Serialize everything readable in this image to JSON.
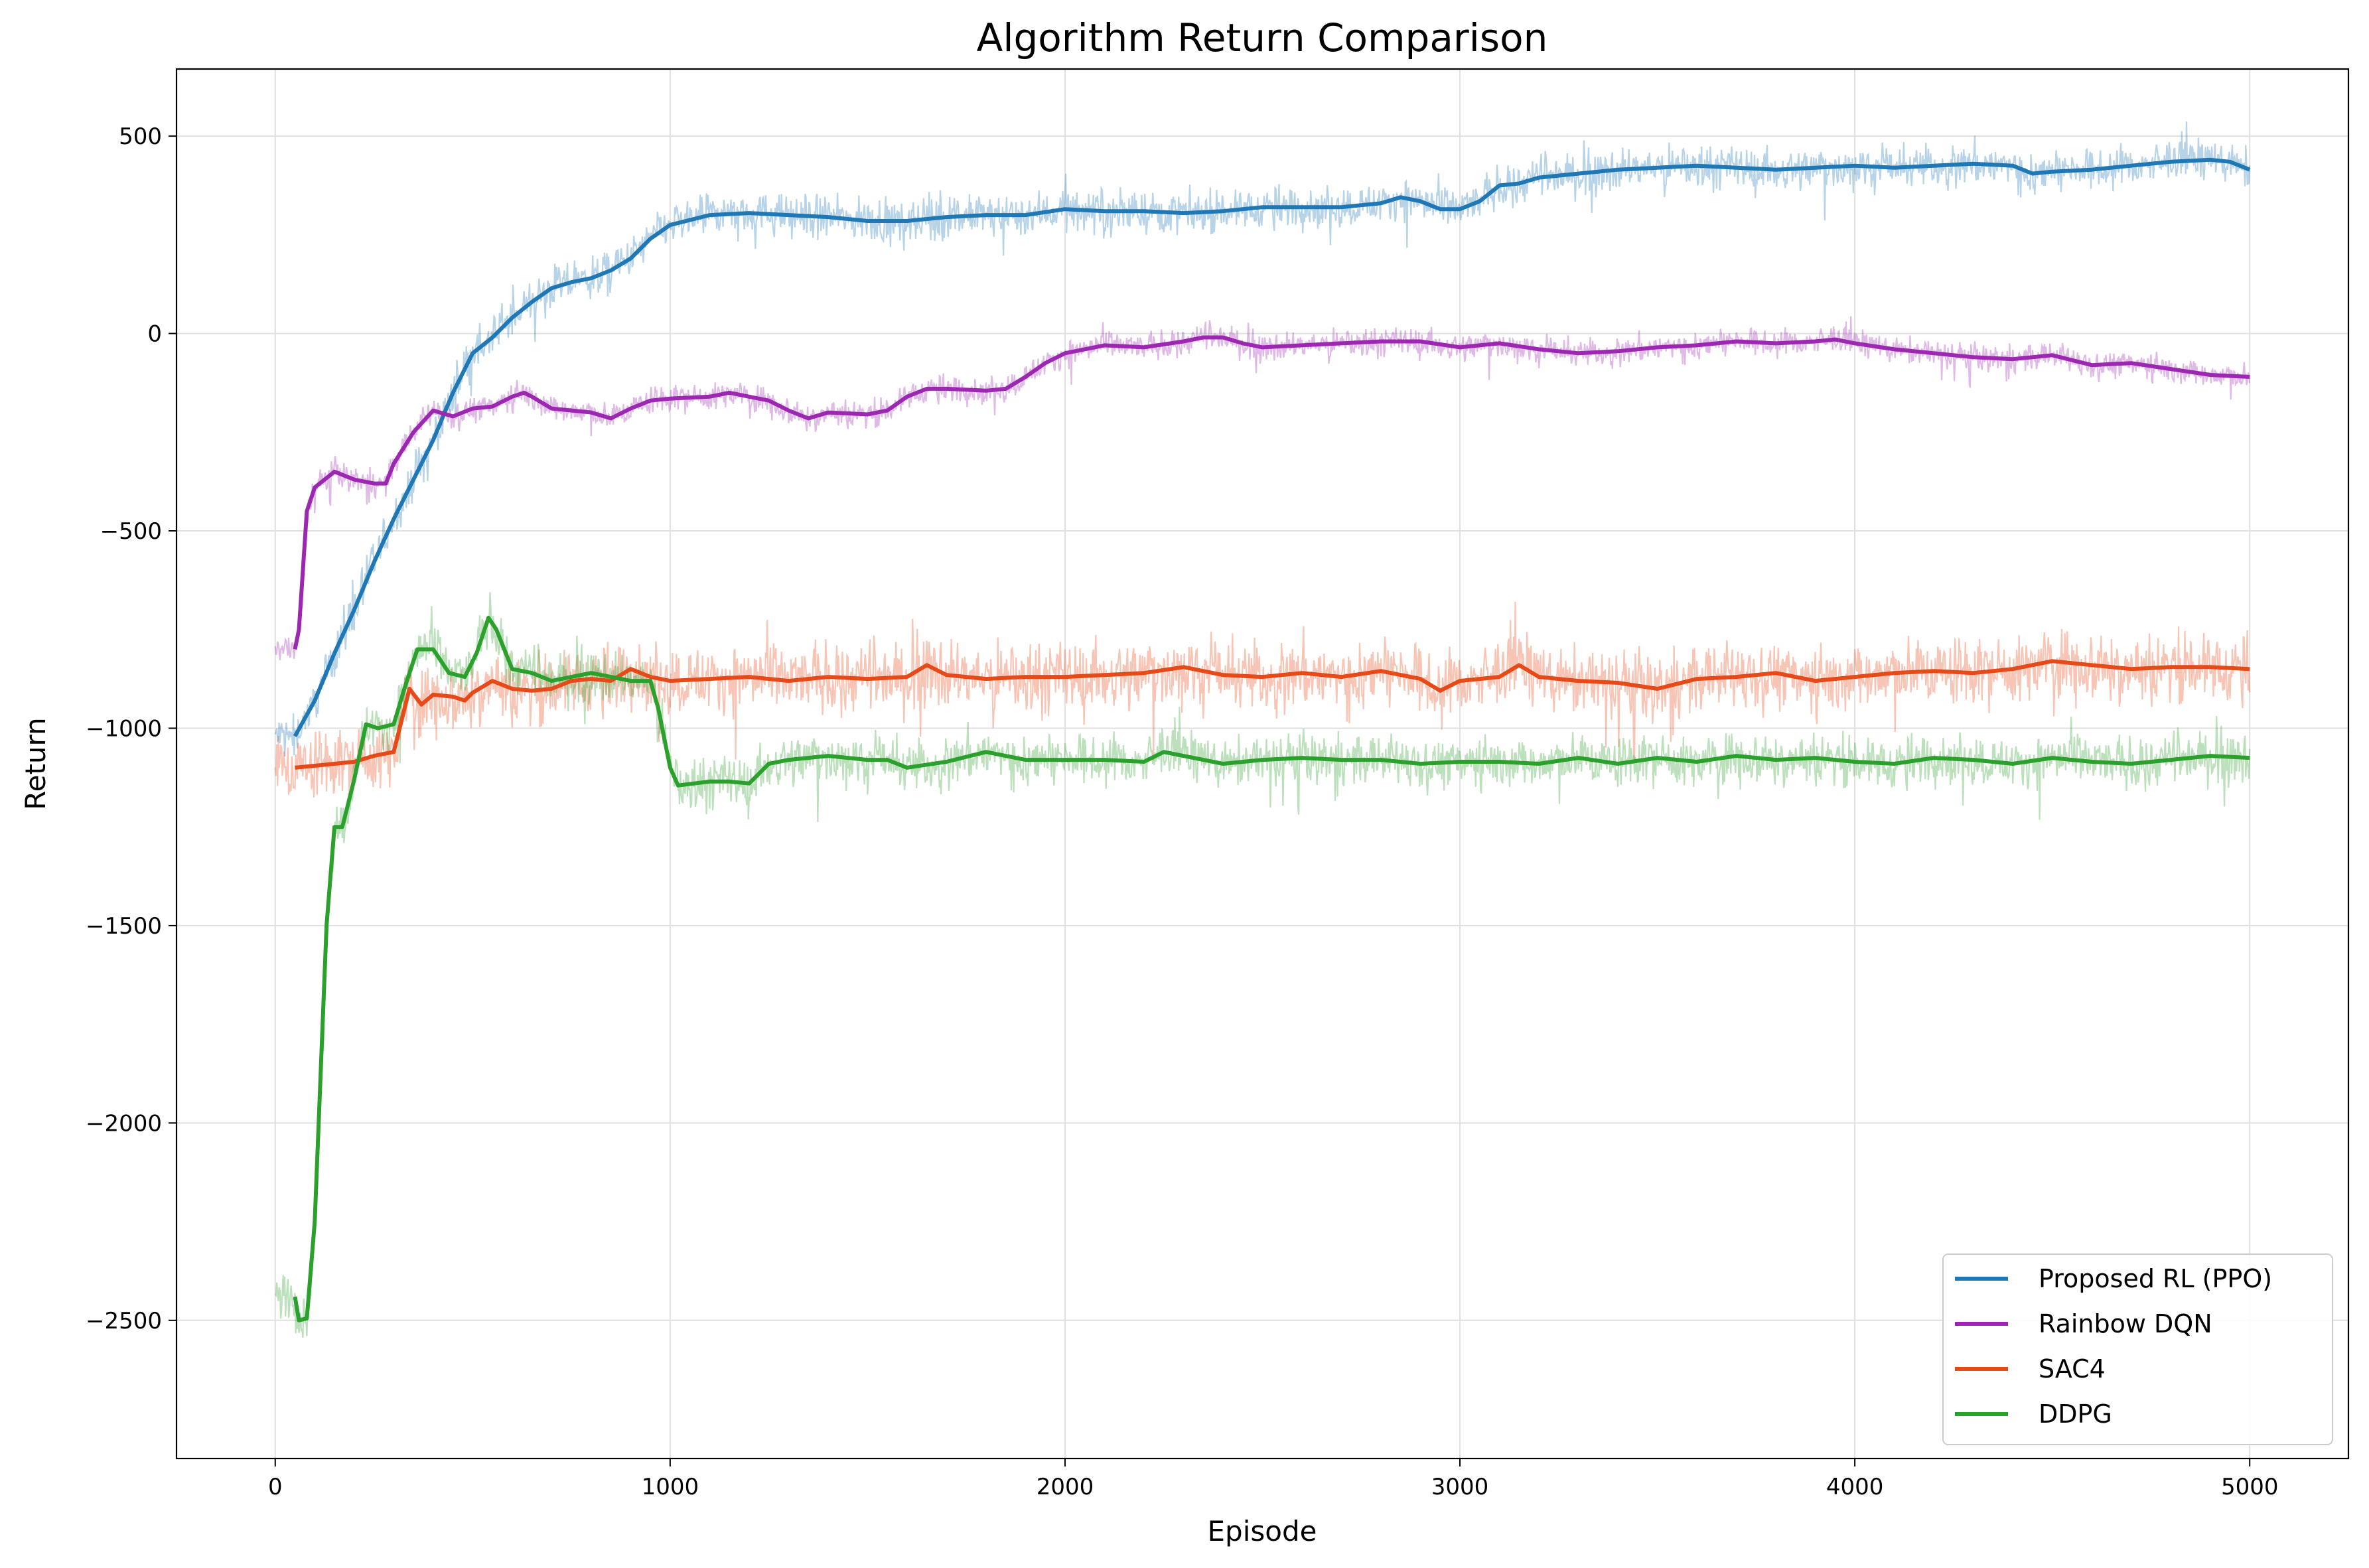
{
  "chart_data": {
    "type": "line",
    "title": "Algorithm Return Comparison",
    "xlabel": "Episode",
    "ylabel": "Return",
    "xlim": [
      -250,
      5250
    ],
    "ylim": [
      -2850,
      670
    ],
    "xticks": [
      0,
      1000,
      2000,
      3000,
      4000,
      5000
    ],
    "yticks": [
      -2500,
      -2000,
      -1500,
      -1000,
      -500,
      0,
      500
    ],
    "grid": true,
    "legend_position": "lower-right",
    "raw_noise_shown": true,
    "series": [
      {
        "name": "Proposed RL (PPO)",
        "color": "#1f77b4",
        "raw_noise": 45,
        "raw_start": 0,
        "smoothed": [
          [
            50,
            -1020
          ],
          [
            100,
            -930
          ],
          [
            150,
            -810
          ],
          [
            200,
            -700
          ],
          [
            250,
            -580
          ],
          [
            300,
            -470
          ],
          [
            350,
            -370
          ],
          [
            400,
            -270
          ],
          [
            450,
            -150
          ],
          [
            500,
            -50
          ],
          [
            550,
            -10
          ],
          [
            600,
            40
          ],
          [
            650,
            80
          ],
          [
            700,
            115
          ],
          [
            750,
            130
          ],
          [
            800,
            140
          ],
          [
            850,
            160
          ],
          [
            900,
            190
          ],
          [
            950,
            240
          ],
          [
            1000,
            275
          ],
          [
            1100,
            300
          ],
          [
            1200,
            305
          ],
          [
            1300,
            300
          ],
          [
            1400,
            295
          ],
          [
            1500,
            285
          ],
          [
            1600,
            285
          ],
          [
            1700,
            295
          ],
          [
            1800,
            300
          ],
          [
            1900,
            300
          ],
          [
            2000,
            315
          ],
          [
            2100,
            310
          ],
          [
            2200,
            310
          ],
          [
            2300,
            305
          ],
          [
            2400,
            310
          ],
          [
            2500,
            320
          ],
          [
            2600,
            320
          ],
          [
            2700,
            320
          ],
          [
            2800,
            330
          ],
          [
            2850,
            345
          ],
          [
            2900,
            335
          ],
          [
            2950,
            315
          ],
          [
            3000,
            315
          ],
          [
            3050,
            335
          ],
          [
            3100,
            375
          ],
          [
            3150,
            380
          ],
          [
            3200,
            395
          ],
          [
            3300,
            405
          ],
          [
            3400,
            415
          ],
          [
            3500,
            420
          ],
          [
            3600,
            425
          ],
          [
            3700,
            420
          ],
          [
            3800,
            415
          ],
          [
            3900,
            420
          ],
          [
            4000,
            425
          ],
          [
            4100,
            420
          ],
          [
            4200,
            425
          ],
          [
            4300,
            430
          ],
          [
            4400,
            425
          ],
          [
            4450,
            405
          ],
          [
            4500,
            410
          ],
          [
            4600,
            415
          ],
          [
            4700,
            425
          ],
          [
            4800,
            435
          ],
          [
            4900,
            440
          ],
          [
            4950,
            435
          ],
          [
            5000,
            415
          ]
        ]
      },
      {
        "name": "Rainbow DQN",
        "color": "#9c27b0",
        "raw_noise": 30,
        "raw_start": 0,
        "smoothed": [
          [
            50,
            -800
          ],
          [
            60,
            -750
          ],
          [
            80,
            -450
          ],
          [
            100,
            -390
          ],
          [
            150,
            -350
          ],
          [
            200,
            -370
          ],
          [
            250,
            -380
          ],
          [
            280,
            -380
          ],
          [
            300,
            -330
          ],
          [
            350,
            -250
          ],
          [
            400,
            -195
          ],
          [
            450,
            -210
          ],
          [
            500,
            -190
          ],
          [
            550,
            -185
          ],
          [
            600,
            -160
          ],
          [
            630,
            -150
          ],
          [
            650,
            -160
          ],
          [
            700,
            -190
          ],
          [
            750,
            -195
          ],
          [
            800,
            -200
          ],
          [
            850,
            -215
          ],
          [
            900,
            -190
          ],
          [
            950,
            -170
          ],
          [
            1000,
            -165
          ],
          [
            1100,
            -160
          ],
          [
            1150,
            -150
          ],
          [
            1200,
            -160
          ],
          [
            1250,
            -170
          ],
          [
            1300,
            -195
          ],
          [
            1350,
            -215
          ],
          [
            1400,
            -200
          ],
          [
            1500,
            -205
          ],
          [
            1550,
            -195
          ],
          [
            1600,
            -160
          ],
          [
            1650,
            -140
          ],
          [
            1700,
            -140
          ],
          [
            1800,
            -145
          ],
          [
            1850,
            -140
          ],
          [
            1900,
            -110
          ],
          [
            1950,
            -75
          ],
          [
            2000,
            -50
          ],
          [
            2100,
            -30
          ],
          [
            2200,
            -35
          ],
          [
            2300,
            -20
          ],
          [
            2350,
            -10
          ],
          [
            2400,
            -10
          ],
          [
            2450,
            -25
          ],
          [
            2500,
            -35
          ],
          [
            2600,
            -30
          ],
          [
            2700,
            -25
          ],
          [
            2800,
            -20
          ],
          [
            2900,
            -20
          ],
          [
            3000,
            -35
          ],
          [
            3100,
            -25
          ],
          [
            3200,
            -40
          ],
          [
            3300,
            -50
          ],
          [
            3400,
            -45
          ],
          [
            3500,
            -35
          ],
          [
            3600,
            -30
          ],
          [
            3700,
            -20
          ],
          [
            3800,
            -25
          ],
          [
            3900,
            -20
          ],
          [
            3950,
            -15
          ],
          [
            4000,
            -25
          ],
          [
            4100,
            -40
          ],
          [
            4200,
            -50
          ],
          [
            4300,
            -60
          ],
          [
            4400,
            -65
          ],
          [
            4500,
            -55
          ],
          [
            4600,
            -80
          ],
          [
            4700,
            -75
          ],
          [
            4800,
            -90
          ],
          [
            4900,
            -105
          ],
          [
            5000,
            -110
          ]
        ]
      },
      {
        "name": "SAC4",
        "color": "#e64a19",
        "raw_noise": 75,
        "raw_start": 0,
        "smoothed": [
          [
            50,
            -1100
          ],
          [
            100,
            -1095
          ],
          [
            150,
            -1090
          ],
          [
            200,
            -1085
          ],
          [
            250,
            -1070
          ],
          [
            300,
            -1060
          ],
          [
            340,
            -900
          ],
          [
            370,
            -940
          ],
          [
            400,
            -915
          ],
          [
            450,
            -920
          ],
          [
            480,
            -930
          ],
          [
            500,
            -910
          ],
          [
            550,
            -880
          ],
          [
            600,
            -900
          ],
          [
            650,
            -905
          ],
          [
            700,
            -900
          ],
          [
            750,
            -880
          ],
          [
            800,
            -875
          ],
          [
            850,
            -880
          ],
          [
            900,
            -850
          ],
          [
            950,
            -870
          ],
          [
            1000,
            -880
          ],
          [
            1100,
            -875
          ],
          [
            1200,
            -870
          ],
          [
            1300,
            -880
          ],
          [
            1400,
            -870
          ],
          [
            1500,
            -875
          ],
          [
            1600,
            -870
          ],
          [
            1650,
            -840
          ],
          [
            1700,
            -865
          ],
          [
            1800,
            -875
          ],
          [
            1900,
            -870
          ],
          [
            2000,
            -870
          ],
          [
            2100,
            -865
          ],
          [
            2200,
            -860
          ],
          [
            2300,
            -845
          ],
          [
            2400,
            -865
          ],
          [
            2500,
            -870
          ],
          [
            2600,
            -860
          ],
          [
            2700,
            -870
          ],
          [
            2800,
            -855
          ],
          [
            2900,
            -875
          ],
          [
            2950,
            -905
          ],
          [
            3000,
            -880
          ],
          [
            3100,
            -870
          ],
          [
            3150,
            -840
          ],
          [
            3200,
            -870
          ],
          [
            3300,
            -880
          ],
          [
            3400,
            -885
          ],
          [
            3500,
            -900
          ],
          [
            3600,
            -875
          ],
          [
            3700,
            -870
          ],
          [
            3800,
            -860
          ],
          [
            3900,
            -880
          ],
          [
            4000,
            -870
          ],
          [
            4100,
            -860
          ],
          [
            4200,
            -855
          ],
          [
            4300,
            -860
          ],
          [
            4400,
            -850
          ],
          [
            4500,
            -830
          ],
          [
            4600,
            -840
          ],
          [
            4700,
            -850
          ],
          [
            4800,
            -845
          ],
          [
            4900,
            -845
          ],
          [
            5000,
            -850
          ]
        ]
      },
      {
        "name": "DDPG",
        "color": "#2ca02c",
        "raw_noise": 55,
        "raw_start": 0,
        "smoothed": [
          [
            50,
            -2440
          ],
          [
            60,
            -2500
          ],
          [
            80,
            -2495
          ],
          [
            100,
            -2250
          ],
          [
            130,
            -1500
          ],
          [
            150,
            -1250
          ],
          [
            170,
            -1250
          ],
          [
            200,
            -1130
          ],
          [
            230,
            -990
          ],
          [
            260,
            -1000
          ],
          [
            300,
            -990
          ],
          [
            330,
            -890
          ],
          [
            360,
            -800
          ],
          [
            400,
            -800
          ],
          [
            440,
            -860
          ],
          [
            480,
            -870
          ],
          [
            510,
            -810
          ],
          [
            540,
            -720
          ],
          [
            560,
            -750
          ],
          [
            600,
            -850
          ],
          [
            650,
            -860
          ],
          [
            700,
            -880
          ],
          [
            750,
            -870
          ],
          [
            800,
            -860
          ],
          [
            850,
            -870
          ],
          [
            900,
            -880
          ],
          [
            950,
            -880
          ],
          [
            970,
            -950
          ],
          [
            1000,
            -1100
          ],
          [
            1020,
            -1145
          ],
          [
            1100,
            -1135
          ],
          [
            1150,
            -1135
          ],
          [
            1200,
            -1140
          ],
          [
            1250,
            -1090
          ],
          [
            1300,
            -1080
          ],
          [
            1400,
            -1070
          ],
          [
            1500,
            -1080
          ],
          [
            1550,
            -1080
          ],
          [
            1600,
            -1100
          ],
          [
            1700,
            -1085
          ],
          [
            1800,
            -1060
          ],
          [
            1900,
            -1080
          ],
          [
            2000,
            -1080
          ],
          [
            2100,
            -1080
          ],
          [
            2200,
            -1085
          ],
          [
            2250,
            -1060
          ],
          [
            2300,
            -1070
          ],
          [
            2400,
            -1090
          ],
          [
            2500,
            -1080
          ],
          [
            2600,
            -1075
          ],
          [
            2700,
            -1080
          ],
          [
            2800,
            -1080
          ],
          [
            2900,
            -1090
          ],
          [
            3000,
            -1085
          ],
          [
            3100,
            -1085
          ],
          [
            3200,
            -1090
          ],
          [
            3300,
            -1075
          ],
          [
            3400,
            -1090
          ],
          [
            3500,
            -1075
          ],
          [
            3600,
            -1085
          ],
          [
            3700,
            -1070
          ],
          [
            3800,
            -1080
          ],
          [
            3900,
            -1075
          ],
          [
            4000,
            -1085
          ],
          [
            4100,
            -1090
          ],
          [
            4200,
            -1075
          ],
          [
            4300,
            -1080
          ],
          [
            4400,
            -1090
          ],
          [
            4500,
            -1075
          ],
          [
            4600,
            -1085
          ],
          [
            4700,
            -1090
          ],
          [
            4800,
            -1080
          ],
          [
            4900,
            -1070
          ],
          [
            5000,
            -1075
          ]
        ]
      }
    ]
  }
}
